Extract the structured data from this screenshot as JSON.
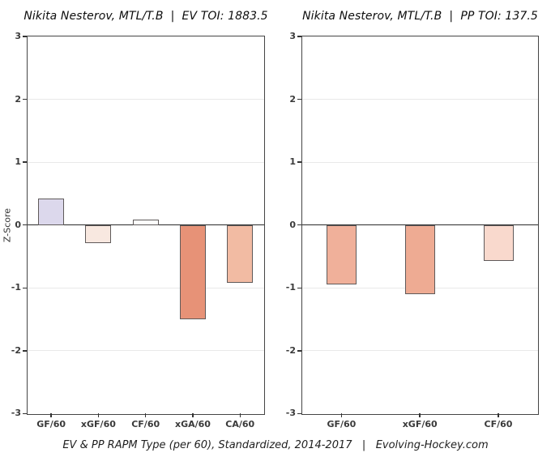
{
  "figure": {
    "footer": "EV & PP RAPM Type (per 60), Standardized, 2014-2017   |   Evolving-Hockey.com"
  },
  "chart_data": [
    {
      "type": "bar",
      "title": "Nikita Nesterov, MTL/T.B  |  EV TOI: 1883.5",
      "ylabel": "Z-Score",
      "ylim": [
        -3,
        3
      ],
      "yticks": [
        3,
        2,
        1,
        0,
        -1,
        -2,
        -3
      ],
      "grid": true,
      "legend": "none",
      "categories": [
        "GF/60",
        "xGF/60",
        "CF/60",
        "xGA/60",
        "CA/60"
      ],
      "values": [
        0.42,
        -0.29,
        0.09,
        -1.5,
        -0.92
      ],
      "bar_colors": [
        "#dcd8ec",
        "#f8e8e0",
        "#fdfdfc",
        "#e79277",
        "#f2bba3"
      ],
      "bar_edge_color": "#5f5a5a"
    },
    {
      "type": "bar",
      "title": "Nikita Nesterov, MTL/T.B  |  PP TOI: 137.5",
      "ylabel": "",
      "ylim": [
        -3,
        3
      ],
      "yticks": [
        3,
        2,
        1,
        0,
        -1,
        -2,
        -3
      ],
      "grid": true,
      "legend": "none",
      "categories": [
        "GF/60",
        "xGF/60",
        "CF/60"
      ],
      "values": [
        -0.95,
        -1.1,
        -0.57
      ],
      "bar_colors": [
        "#f0b09a",
        "#eeab93",
        "#f9d9cd"
      ],
      "bar_edge_color": "#5f5a5a"
    }
  ]
}
